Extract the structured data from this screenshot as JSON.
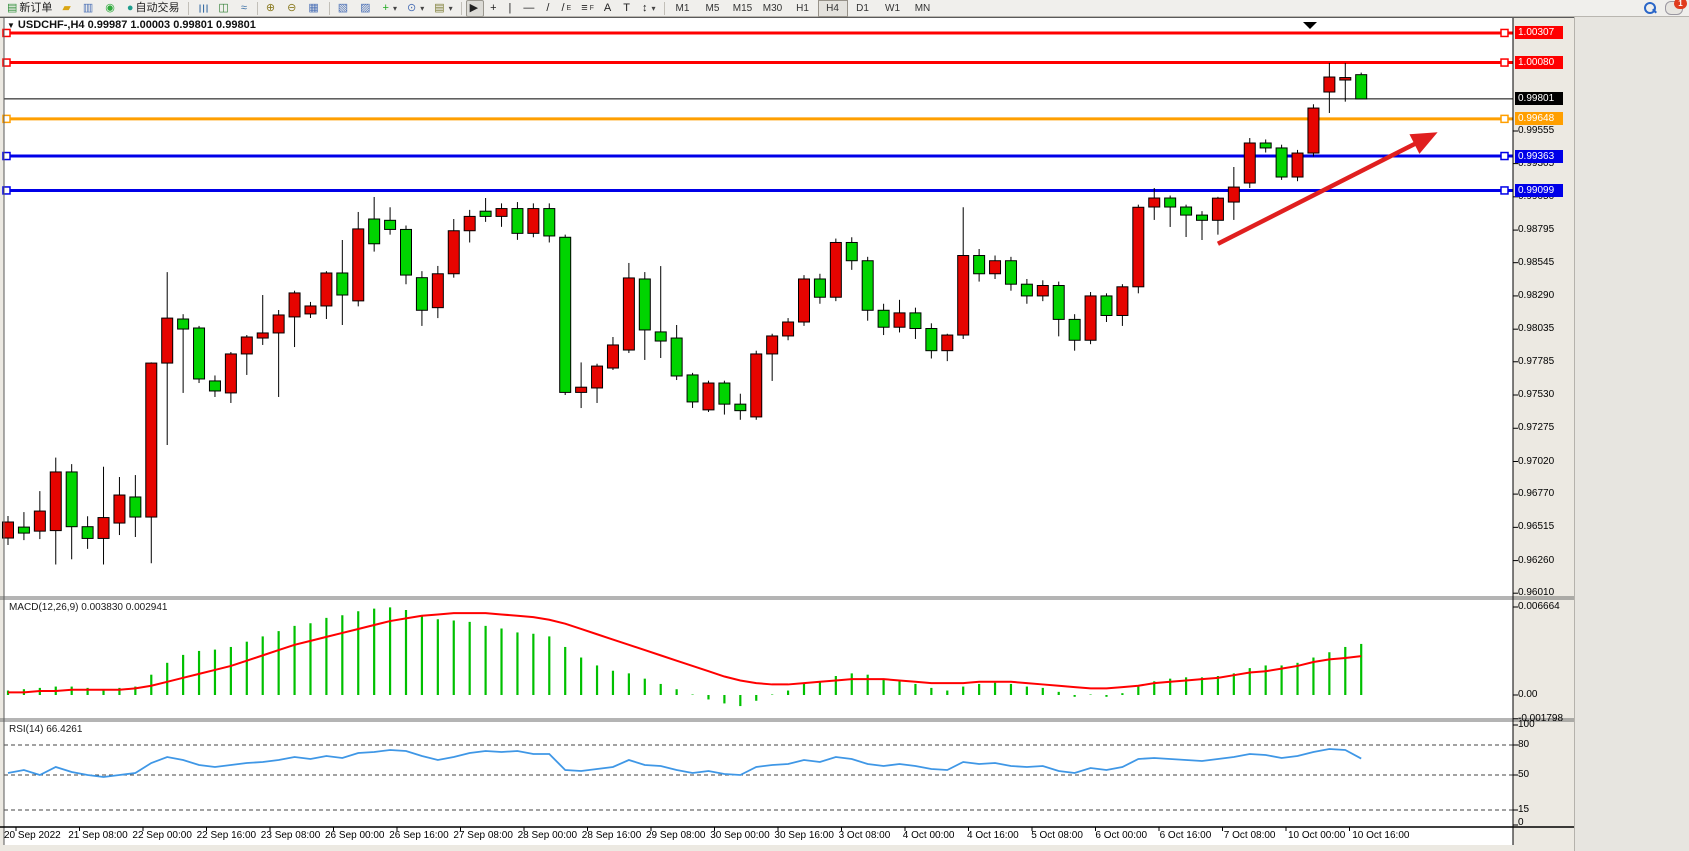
{
  "toolbar": {
    "items": [
      {
        "name": "new-order-button",
        "glyph": "▤",
        "color": "#2f8f3a",
        "label": "新订单",
        "interact": true
      },
      {
        "name": "gold-icon",
        "glyph": "▰",
        "color": "#d9a514",
        "interact": true
      },
      {
        "name": "profile-icon",
        "glyph": "▥",
        "color": "#4a6fb5",
        "interact": true
      },
      {
        "name": "signal-icon",
        "glyph": "◉",
        "color": "#2faa3c",
        "interact": true
      },
      {
        "name": "autotrade-button",
        "glyph": "●",
        "color": "#1f9e8e",
        "label": "自动交易",
        "interact": true
      },
      {
        "sep": true
      },
      {
        "name": "bar-chart-icon",
        "glyph": "☰",
        "rot": true,
        "color": "#3a6ea5",
        "interact": true
      },
      {
        "name": "candlestick-chart-icon",
        "glyph": "◫",
        "color": "#2e7d32",
        "interact": true
      },
      {
        "name": "line-chart-icon",
        "glyph": "≈",
        "color": "#3a6ea5",
        "interact": true
      },
      {
        "sep": true
      },
      {
        "name": "zoom-in-button",
        "glyph": "⊕",
        "color": "#8a7a20",
        "interact": true
      },
      {
        "name": "zoom-out-button",
        "glyph": "⊖",
        "color": "#8a7a20",
        "interact": true
      },
      {
        "name": "tile-windows-button",
        "glyph": "▦",
        "color": "#4a6fb5",
        "interact": true
      },
      {
        "sep": true
      },
      {
        "name": "arrange-charts-button",
        "glyph": "▧",
        "color": "#4a6fb5",
        "interact": true
      },
      {
        "name": "cascade-charts-button",
        "glyph": "▨",
        "color": "#4a6fb5",
        "interact": true
      },
      {
        "name": "add-indicator-button",
        "glyph": "+",
        "color": "#1faa1f",
        "caret": "▾",
        "interact": true
      },
      {
        "name": "period-button",
        "glyph": "⊙",
        "color": "#4a6fb5",
        "caret": "▾",
        "interact": true
      },
      {
        "name": "template-button",
        "glyph": "▤",
        "color": "#7a7a30",
        "caret": "▾",
        "interact": true
      },
      {
        "sep": true
      },
      {
        "name": "cursor-button",
        "glyph": "▶",
        "color": "#222",
        "active": true,
        "interact": true
      },
      {
        "name": "crosshair-button",
        "glyph": "+",
        "color": "#222",
        "interact": true
      },
      {
        "name": "vline-button",
        "glyph": "|",
        "color": "#222",
        "interact": true
      },
      {
        "name": "hline-button",
        "glyph": "—",
        "color": "#222",
        "interact": true
      },
      {
        "name": "trendline-button",
        "glyph": "/",
        "color": "#222",
        "interact": true
      },
      {
        "name": "equidistant-channel-button",
        "glyph": "/",
        "sub": "E",
        "color": "#222",
        "interact": true
      },
      {
        "name": "fibonacci-button",
        "glyph": "≡",
        "sub": "F",
        "color": "#222",
        "interact": true
      },
      {
        "name": "text-button",
        "glyph": "A",
        "color": "#222",
        "interact": true
      },
      {
        "name": "text-label-button",
        "glyph": "T",
        "color": "#222",
        "interact": true
      },
      {
        "name": "arrows-button",
        "glyph": "↕",
        "color": "#222",
        "caret": "▾",
        "interact": true
      },
      {
        "sep": true
      }
    ],
    "timeframes": [
      {
        "label": "M1"
      },
      {
        "label": "M5"
      },
      {
        "label": "M15"
      },
      {
        "label": "M30"
      },
      {
        "label": "H1"
      },
      {
        "label": "H4",
        "active": true
      },
      {
        "label": "D1"
      },
      {
        "label": "W1"
      },
      {
        "label": "MN"
      }
    ],
    "chat_badge": "1"
  },
  "chart": {
    "title": "USDCHF-,H4  0.99987 1.00003 0.99801 0.99801",
    "macd_label": "MACD(12,26,9) 0.003830 0.002941",
    "rsi_label": "RSI(14) 66.4261"
  },
  "chart_data": [
    {
      "type": "candlestick",
      "symbol": "USDCHF-",
      "timeframe": "H4",
      "title": "USDCHF-,H4",
      "current_ohlc": {
        "open": 0.99987,
        "high": 1.00003,
        "low": 0.99801,
        "close": 0.99801
      },
      "up_color": "#e60400",
      "down_color": "#00d400",
      "wick_color": "#000000",
      "y_ticks": [
        0.99555,
        0.99305,
        0.9905,
        0.98795,
        0.98545,
        0.9829,
        0.98035,
        0.97785,
        0.9753,
        0.97275,
        0.9702,
        0.9677,
        0.96515,
        0.9626,
        0.9601
      ],
      "levels": [
        {
          "value": 1.00307,
          "color": "#ff0000",
          "kind": "resistance"
        },
        {
          "value": 1.0008,
          "color": "#ff0000",
          "kind": "resistance"
        },
        {
          "value": 0.99801,
          "color": "#000000",
          "kind": "current-price"
        },
        {
          "value": 0.99648,
          "color": "#ff9f00",
          "kind": "resistance"
        },
        {
          "value": 0.99363,
          "color": "#0000e8",
          "kind": "support"
        },
        {
          "value": 0.99099,
          "color": "#0000e8",
          "kind": "support"
        }
      ],
      "trend_arrow": {
        "from_bar": 76.0,
        "from_price": 0.9869,
        "to_bar": 89.8,
        "to_price": 0.99545,
        "color": "#e01f1f"
      },
      "x_axis_labels": [
        "20 Sep 2022",
        "21 Sep 08:00",
        "22 Sep 00:00",
        "22 Sep 16:00",
        "23 Sep 08:00",
        "26 Sep 00:00",
        "26 Sep 16:00",
        "27 Sep 08:00",
        "28 Sep 00:00",
        "28 Sep 16:00",
        "29 Sep 08:00",
        "30 Sep 00:00",
        "30 Sep 16:00",
        "3 Oct 08:00",
        "4 Oct 00:00",
        "4 Oct 16:00",
        "5 Oct 08:00",
        "6 Oct 00:00",
        "6 Oct 16:00",
        "7 Oct 08:00",
        "10 Oct 00:00",
        "10 Oct 16:00"
      ],
      "ohlc": [
        [
          0.96433,
          0.96602,
          0.9638,
          0.96556
        ],
        [
          0.96517,
          0.96632,
          0.96417,
          0.96471
        ],
        [
          0.96486,
          0.96793,
          0.96425,
          0.9664
        ],
        [
          0.9649,
          0.9705,
          0.9623,
          0.9694
        ],
        [
          0.9694,
          0.97,
          0.9627,
          0.9652
        ],
        [
          0.9652,
          0.966,
          0.9635,
          0.9643
        ],
        [
          0.9643,
          0.9698,
          0.9623,
          0.9659
        ],
        [
          0.96548,
          0.96901,
          0.96456,
          0.96763
        ],
        [
          0.96748,
          0.96916,
          0.96441,
          0.96594
        ],
        [
          0.96594,
          0.9778,
          0.9624,
          0.97775
        ],
        [
          0.97775,
          0.98473,
          0.97147,
          0.9812
        ],
        [
          0.98113,
          0.9815,
          0.97546,
          0.98036
        ],
        [
          0.98044,
          0.9806,
          0.97622,
          0.97653
        ],
        [
          0.97638,
          0.9768,
          0.97515,
          0.97561
        ],
        [
          0.97546,
          0.9786,
          0.97469,
          0.97845
        ],
        [
          0.97845,
          0.9799,
          0.97684,
          0.97975
        ],
        [
          0.97967,
          0.98297,
          0.97914,
          0.98006
        ],
        [
          0.98006,
          0.98182,
          0.97515,
          0.98144
        ],
        [
          0.98129,
          0.9833,
          0.97898,
          0.98313
        ],
        [
          0.98152,
          0.98244,
          0.98121,
          0.98213
        ],
        [
          0.98213,
          0.9848,
          0.98113,
          0.98466
        ],
        [
          0.98466,
          0.98719,
          0.98067,
          0.98297
        ],
        [
          0.98252,
          0.98934,
          0.9821,
          0.98804
        ],
        [
          0.9888,
          0.99049,
          0.9863,
          0.9869
        ],
        [
          0.9887,
          0.9897,
          0.9876,
          0.988
        ],
        [
          0.988,
          0.9883,
          0.9838,
          0.9845
        ],
        [
          0.9843,
          0.9848,
          0.9806,
          0.9818
        ],
        [
          0.982,
          0.9852,
          0.9812,
          0.9846
        ],
        [
          0.9846,
          0.9888,
          0.9843,
          0.9879
        ],
        [
          0.9879,
          0.9895,
          0.987,
          0.989
        ],
        [
          0.9894,
          0.99041,
          0.98858,
          0.989
        ],
        [
          0.989,
          0.99,
          0.9882,
          0.9896
        ],
        [
          0.9896,
          0.9901,
          0.9872,
          0.9877
        ],
        [
          0.9877,
          0.99,
          0.9874,
          0.9896
        ],
        [
          0.9896,
          0.99,
          0.987,
          0.9875
        ],
        [
          0.9874,
          0.9876,
          0.9753,
          0.9755
        ],
        [
          0.9755,
          0.9778,
          0.9743,
          0.9759
        ],
        [
          0.97584,
          0.9777,
          0.97469,
          0.97752
        ],
        [
          0.97737,
          0.97975,
          0.97722,
          0.97914
        ],
        [
          0.97875,
          0.98543,
          0.97852,
          0.98428
        ],
        [
          0.9842,
          0.98473,
          0.97799,
          0.98029
        ],
        [
          0.98014,
          0.98519,
          0.97814,
          0.97944
        ],
        [
          0.97967,
          0.98067,
          0.97645,
          0.97676
        ],
        [
          0.97684,
          0.977,
          0.97431,
          0.97477
        ],
        [
          0.97416,
          0.9764,
          0.974,
          0.97622
        ],
        [
          0.97622,
          0.9764,
          0.9738,
          0.9746
        ],
        [
          0.9746,
          0.9754,
          0.9734,
          0.9741
        ],
        [
          0.97362,
          0.9787,
          0.9734,
          0.97845
        ],
        [
          0.97845,
          0.98,
          0.97638,
          0.97983
        ],
        [
          0.97983,
          0.9812,
          0.9795,
          0.9809
        ],
        [
          0.9809,
          0.9845,
          0.9806,
          0.9842
        ],
        [
          0.9842,
          0.9846,
          0.9823,
          0.9828
        ],
        [
          0.9828,
          0.9873,
          0.9825,
          0.987
        ],
        [
          0.987,
          0.9874,
          0.9849,
          0.9856
        ],
        [
          0.9856,
          0.9859,
          0.981,
          0.9818
        ],
        [
          0.9818,
          0.9823,
          0.9799,
          0.9805
        ],
        [
          0.9805,
          0.9826,
          0.9801,
          0.9816
        ],
        [
          0.9816,
          0.982,
          0.9796,
          0.9804
        ],
        [
          0.9804,
          0.9808,
          0.9781,
          0.9787
        ],
        [
          0.9787,
          0.98,
          0.9779,
          0.9799
        ],
        [
          0.9799,
          0.9897,
          0.9796,
          0.986
        ],
        [
          0.986,
          0.9865,
          0.984,
          0.9846
        ],
        [
          0.9846,
          0.986,
          0.9842,
          0.9856
        ],
        [
          0.9856,
          0.9859,
          0.9833,
          0.9838
        ],
        [
          0.9838,
          0.9842,
          0.9823,
          0.9829
        ],
        [
          0.9829,
          0.9841,
          0.9825,
          0.9837
        ],
        [
          0.9837,
          0.984,
          0.9798,
          0.9811
        ],
        [
          0.9811,
          0.9815,
          0.9787,
          0.9795
        ],
        [
          0.9795,
          0.9832,
          0.9792,
          0.9829
        ],
        [
          0.9829,
          0.9831,
          0.9809,
          0.9814
        ],
        [
          0.9814,
          0.9838,
          0.9806,
          0.9836
        ],
        [
          0.9836,
          0.9899,
          0.9831,
          0.9897
        ],
        [
          0.98972,
          0.99118,
          0.98873,
          0.99041
        ],
        [
          0.99041,
          0.9906,
          0.98819,
          0.98972
        ],
        [
          0.98972,
          0.9899,
          0.98742,
          0.9891
        ],
        [
          0.9891,
          0.9894,
          0.98719,
          0.9887
        ],
        [
          0.9887,
          0.9905,
          0.9876,
          0.9904
        ],
        [
          0.9901,
          0.99279,
          0.98873,
          0.99125
        ],
        [
          0.99156,
          0.99501,
          0.99118,
          0.99463
        ],
        [
          0.99463,
          0.9949,
          0.9939,
          0.99425
        ],
        [
          0.99425,
          0.9945,
          0.9918,
          0.99202
        ],
        [
          0.99202,
          0.9941,
          0.9917,
          0.99386
        ],
        [
          0.99386,
          0.9976,
          0.9936,
          0.99731
        ],
        [
          0.99854,
          1.00077,
          0.99693,
          0.99969
        ],
        [
          0.99946,
          1.00077,
          0.9978,
          0.99965
        ],
        [
          0.99987,
          1.00003,
          0.99801,
          0.99801
        ]
      ]
    },
    {
      "type": "bar",
      "name": "MACD(12,26,9)",
      "current_values": [
        0.00383,
        0.002941
      ],
      "hist_color": "#00c000",
      "signal_color": "#ff0000",
      "y_ticks": [
        0.006664,
        0.0,
        -0.001798
      ],
      "hist": [
        0.0003,
        0.0004,
        0.0005,
        0.0006,
        0.0006,
        0.0005,
        0.0004,
        0.0005,
        0.0006,
        0.0015,
        0.0024,
        0.003,
        0.0033,
        0.0034,
        0.0036,
        0.004,
        0.0044,
        0.0048,
        0.0052,
        0.0054,
        0.0058,
        0.006,
        0.0063,
        0.0065,
        0.0066,
        0.0064,
        0.006,
        0.0057,
        0.0056,
        0.0055,
        0.0052,
        0.005,
        0.0047,
        0.0046,
        0.0044,
        0.0036,
        0.0028,
        0.0022,
        0.0018,
        0.0016,
        0.0012,
        0.0008,
        0.0004,
        0.0,
        -0.0003,
        -0.0006,
        -0.0008,
        -0.0004,
        0.0,
        0.0003,
        0.0008,
        0.001,
        0.0014,
        0.0016,
        0.0015,
        0.0012,
        0.001,
        0.0008,
        0.0005,
        0.0003,
        0.0006,
        0.0008,
        0.0009,
        0.0008,
        0.0006,
        0.0005,
        0.0002,
        -0.0001,
        0.0,
        -0.0001,
        0.0001,
        0.0006,
        0.001,
        0.0012,
        0.0013,
        0.0013,
        0.0014,
        0.0016,
        0.002,
        0.0022,
        0.0022,
        0.0024,
        0.0028,
        0.0032,
        0.0036,
        0.00383
      ],
      "signal": [
        0.0002,
        0.0002,
        0.0003,
        0.0003,
        0.0004,
        0.0004,
        0.0004,
        0.0004,
        0.0005,
        0.0007,
        0.001,
        0.0013,
        0.0016,
        0.0019,
        0.0022,
        0.0026,
        0.003,
        0.0034,
        0.0038,
        0.0041,
        0.0044,
        0.0047,
        0.005,
        0.0053,
        0.0056,
        0.0058,
        0.006,
        0.0061,
        0.0062,
        0.0062,
        0.0062,
        0.0061,
        0.006,
        0.0059,
        0.0057,
        0.0054,
        0.005,
        0.0046,
        0.0042,
        0.0038,
        0.0034,
        0.003,
        0.0026,
        0.0022,
        0.0018,
        0.0014,
        0.0011,
        0.0009,
        0.0008,
        0.0008,
        0.0009,
        0.001,
        0.0011,
        0.0012,
        0.0012,
        0.0012,
        0.0011,
        0.001,
        0.0009,
        0.0009,
        0.0009,
        0.001,
        0.001,
        0.001,
        0.0009,
        0.0008,
        0.0007,
        0.0006,
        0.0005,
        0.0005,
        0.0006,
        0.0007,
        0.0009,
        0.001,
        0.0011,
        0.0012,
        0.0013,
        0.0015,
        0.0017,
        0.0018,
        0.002,
        0.0022,
        0.0025,
        0.0027,
        0.0028,
        0.002941
      ]
    },
    {
      "type": "line",
      "name": "RSI(14)",
      "current_value": 66.4261,
      "line_color": "#3f97e6",
      "range": [
        0,
        100
      ],
      "level_lines": [
        80,
        50,
        15
      ],
      "y_ticks": [
        100,
        80,
        50,
        15,
        0
      ],
      "values": [
        52,
        55,
        50,
        58,
        53,
        50,
        48,
        50,
        52,
        62,
        68,
        65,
        60,
        58,
        60,
        62,
        63,
        65,
        68,
        66,
        69,
        67,
        72,
        73,
        75,
        74,
        69,
        65,
        68,
        72,
        74,
        73,
        74,
        71,
        71,
        55,
        54,
        56,
        58,
        65,
        60,
        59,
        55,
        52,
        54,
        51,
        50,
        58,
        60,
        61,
        65,
        63,
        68,
        66,
        61,
        59,
        61,
        59,
        56,
        55,
        63,
        61,
        62,
        59,
        58,
        59,
        54,
        52,
        57,
        55,
        58,
        66,
        67,
        66,
        65,
        64,
        66,
        68,
        71,
        70,
        67,
        69,
        73,
        76,
        75,
        66.43
      ]
    }
  ]
}
